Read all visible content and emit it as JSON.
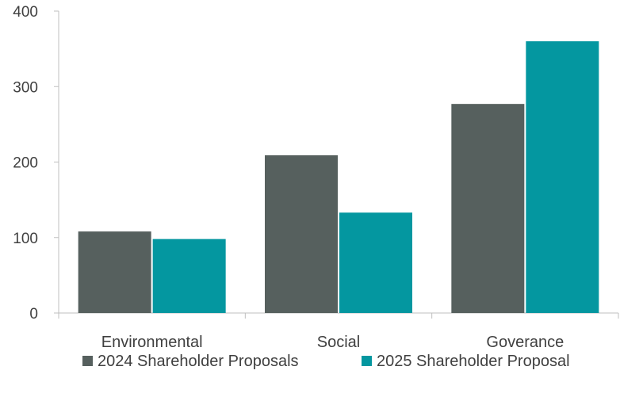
{
  "chart_data": {
    "type": "bar",
    "title": "",
    "xlabel": "",
    "ylabel": "",
    "categories": [
      "Environmental",
      "Social",
      "Goverance"
    ],
    "series": [
      {
        "name": "2024 Shareholder Proposals",
        "color": "#56605e",
        "values": [
          108,
          209,
          277
        ]
      },
      {
        "name": "2025 Shareholder Proposal",
        "color": "#0497a0",
        "values": [
          98,
          133,
          360
        ]
      }
    ],
    "ylim": [
      0,
      400
    ],
    "yticks": [
      0,
      100,
      200,
      300,
      400
    ],
    "grid": false,
    "legend_position": "bottom"
  }
}
